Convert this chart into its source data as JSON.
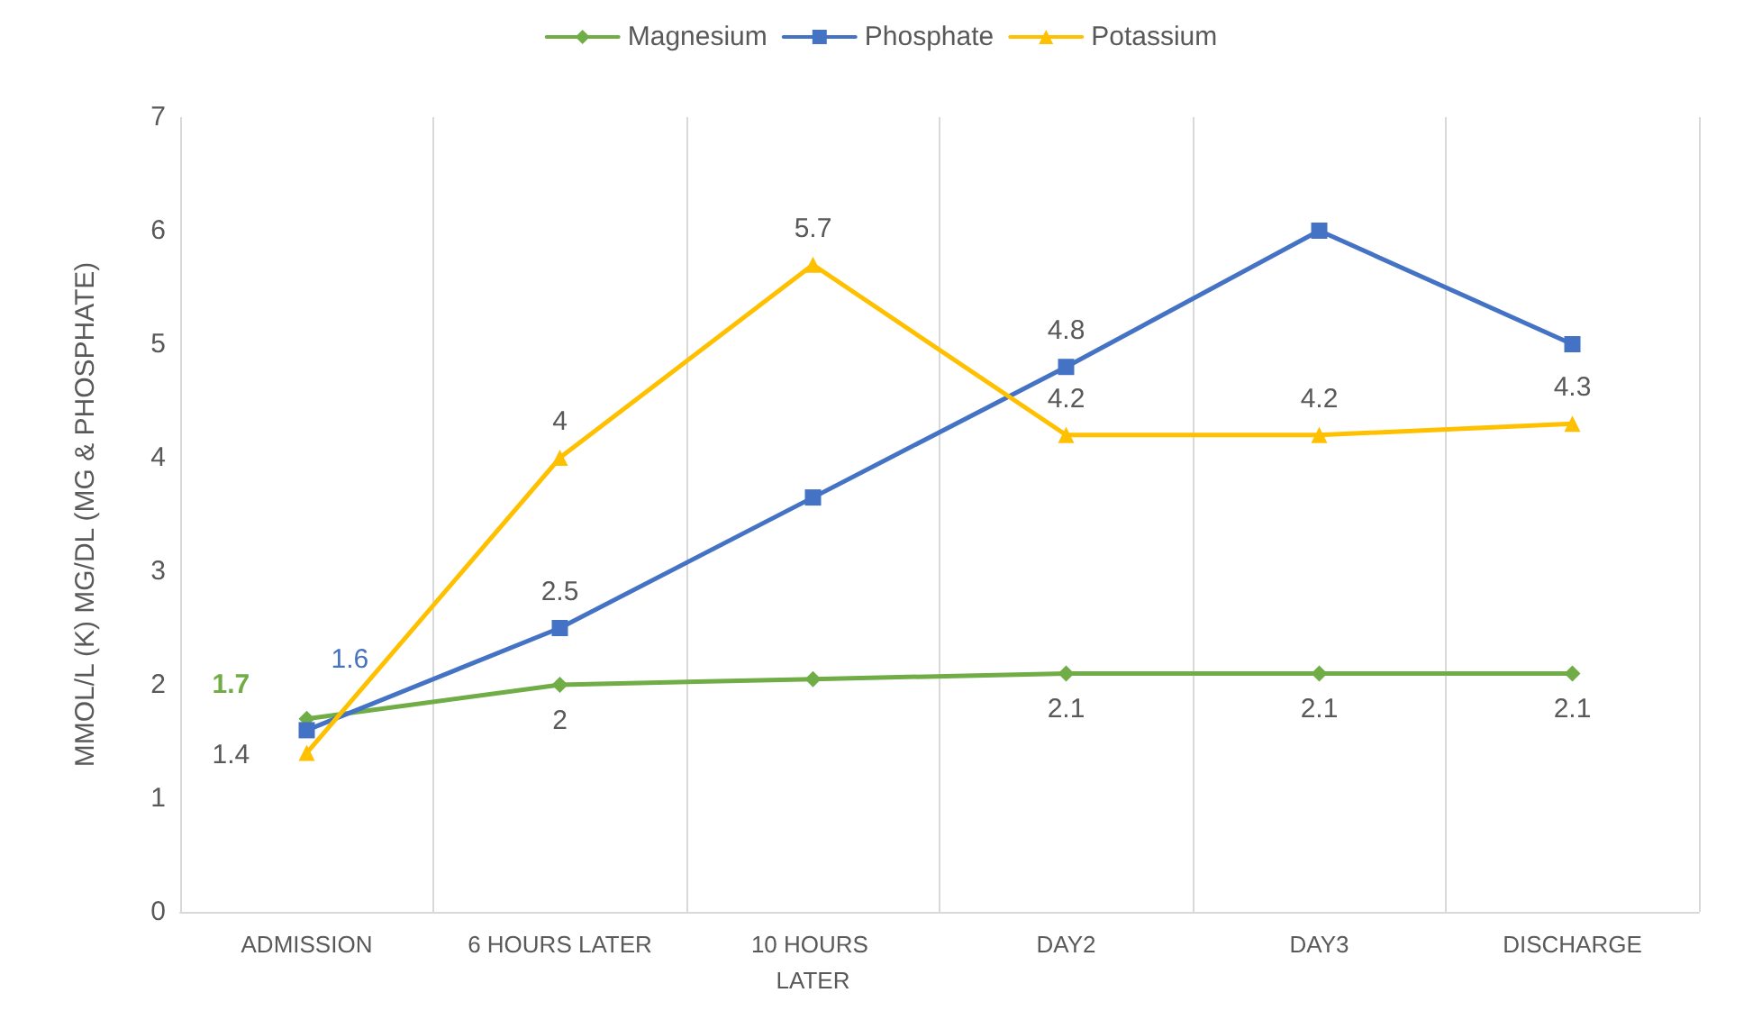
{
  "chart_data": {
    "type": "line",
    "ylabel": "MMOL/L (K) MG/DL (MG & PHOSPHATE)",
    "categories": [
      "ADMISSION",
      "6 HOURS LATER",
      "10 HOURS LATER",
      "DAY2",
      "DAY3",
      "DISCHARGE"
    ],
    "series": [
      {
        "name": "Magnesium",
        "color": "#70ad47",
        "marker": "diamond",
        "values": [
          1.7,
          2,
          2.05,
          2.1,
          2.1,
          2.1
        ],
        "value_labels": [
          "1.7",
          "2",
          null,
          "2.1",
          "2.1",
          "2.1"
        ]
      },
      {
        "name": "Phosphate",
        "color": "#4472c4",
        "marker": "square",
        "values": [
          1.6,
          2.5,
          3.65,
          4.8,
          6,
          5
        ],
        "value_labels": [
          "1.6",
          "2.5",
          null,
          "4.8",
          null,
          null
        ]
      },
      {
        "name": "Potassium",
        "color": "#ffc000",
        "marker": "triangle",
        "values": [
          1.4,
          4,
          5.7,
          4.2,
          4.2,
          4.3
        ],
        "value_labels": [
          "1.4",
          "4",
          "5.7",
          "4.2",
          "4.2",
          "4.3"
        ]
      }
    ],
    "ylim": [
      0,
      7
    ],
    "yticks": [
      0,
      1,
      2,
      3,
      4,
      5,
      6,
      7
    ],
    "grid": "x",
    "legend": "top"
  }
}
